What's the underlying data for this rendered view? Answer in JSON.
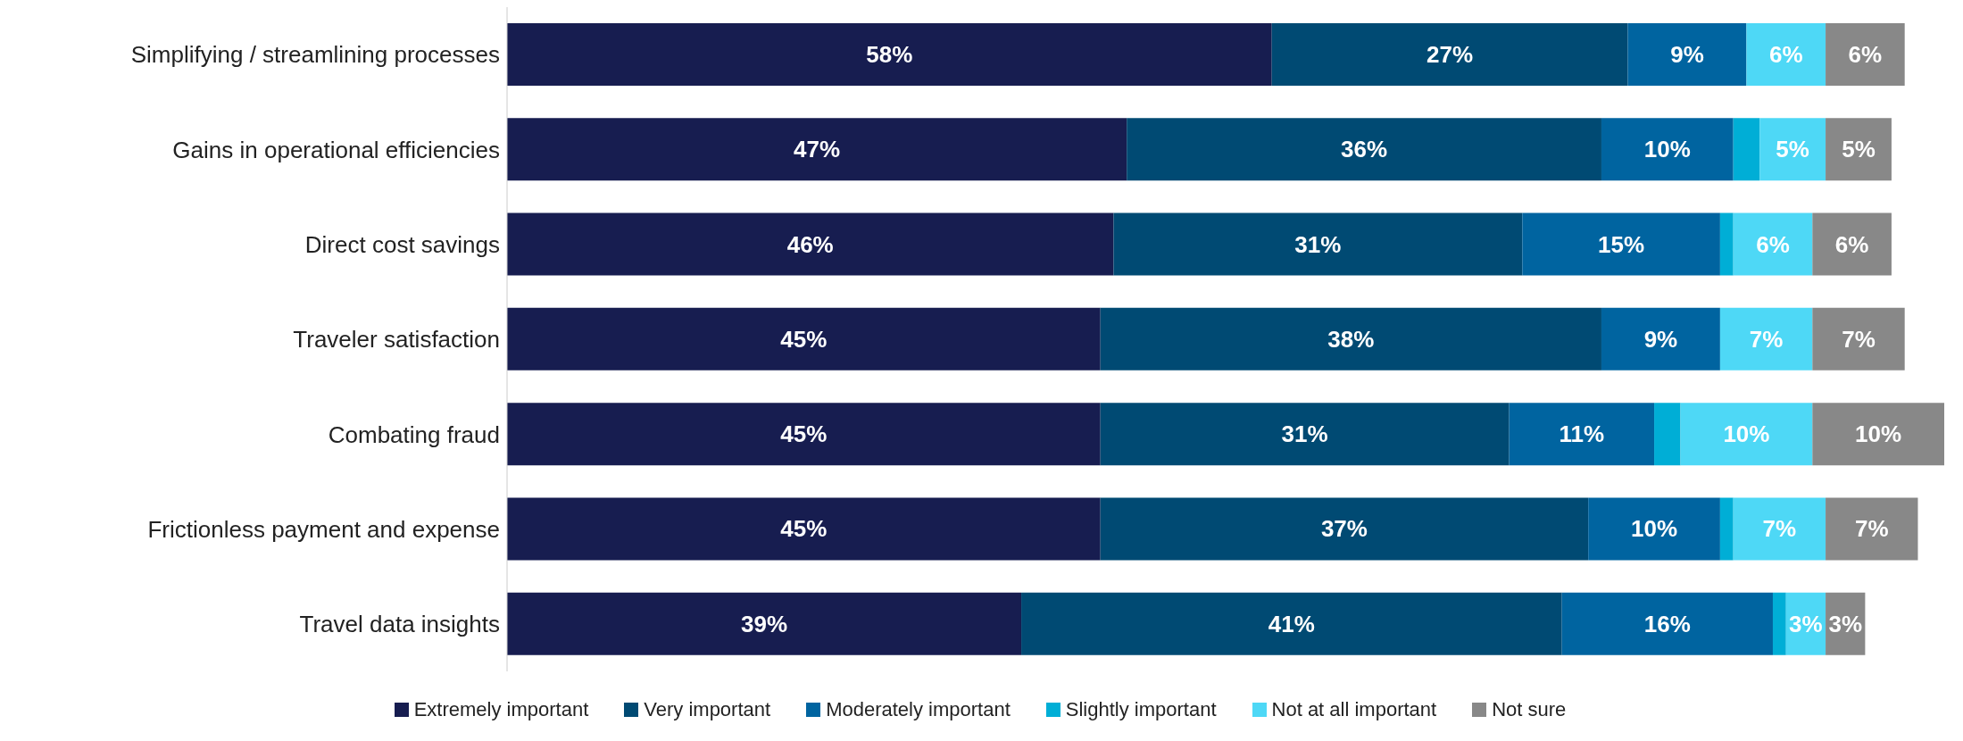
{
  "chart_data": {
    "type": "bar",
    "orientation": "horizontal",
    "stacked": true,
    "legend": "bottom",
    "grid": false,
    "categories": [
      "Simplifying / streamlining processes",
      "Gains in operational efficiencies",
      "Direct cost savings",
      "Traveler satisfaction",
      "Combating fraud",
      "Frictionless payment and expense",
      "Travel data insights"
    ],
    "series": [
      {
        "name": "Extremely important",
        "color": "#171d50",
        "values": [
          58,
          47,
          46,
          45,
          45,
          45,
          39
        ],
        "value_labels": [
          "58%",
          "47%",
          "46%",
          "45%",
          "45%",
          "45%",
          "39%"
        ]
      },
      {
        "name": "Very important",
        "color": "#004a73",
        "values": [
          27,
          36,
          31,
          38,
          31,
          37,
          41
        ],
        "value_labels": [
          "27%",
          "36%",
          "31%",
          "38%",
          "31%",
          "37%",
          "41%"
        ]
      },
      {
        "name": "Moderately important",
        "color": "#0064a0",
        "values": [
          9,
          10,
          15,
          9,
          11,
          10,
          16
        ],
        "value_labels": [
          "9%",
          "10%",
          "15%",
          "9%",
          "11%",
          "10%",
          "16%"
        ]
      },
      {
        "name": "Slightly important",
        "color": "#00aed6",
        "values": [
          null,
          2,
          1,
          null,
          2,
          1,
          1
        ],
        "value_labels": [
          null,
          null,
          null,
          null,
          null,
          null,
          null
        ]
      },
      {
        "name": "Not at all important",
        "color": "#4ed8f6",
        "values": [
          6,
          5,
          6,
          7,
          10,
          7,
          3
        ],
        "value_labels": [
          "6%",
          "5%",
          "6%",
          "7%",
          "10%",
          "7%",
          "3%"
        ]
      },
      {
        "name": "Not sure",
        "color": "#888888",
        "values": [
          6,
          5,
          6,
          7,
          10,
          7,
          3
        ],
        "value_labels": [
          "6%",
          "5%",
          "6%",
          "7%",
          "10%",
          "7%",
          "3%"
        ]
      }
    ]
  }
}
